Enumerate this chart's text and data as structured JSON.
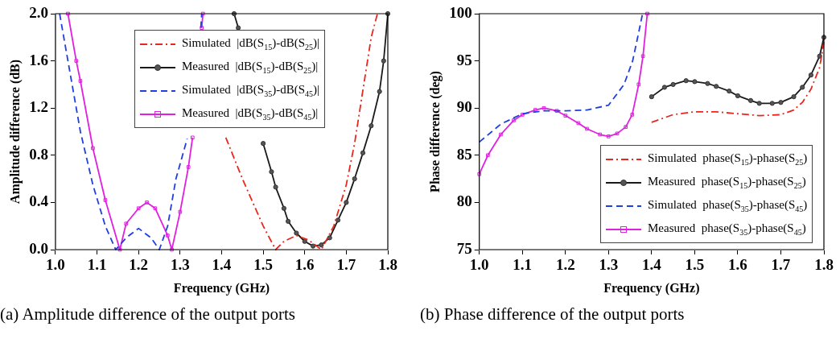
{
  "chart_data": [
    {
      "type": "line",
      "xlabel": "Frequency (GHz)",
      "ylabel": "Amplitude difference (dB)",
      "xlim": [
        1.0,
        1.8
      ],
      "ylim": [
        0,
        2.0
      ],
      "xticks": [
        {
          "value": 1.0,
          "label": "1.0"
        },
        {
          "value": 1.1,
          "label": "1.1"
        },
        {
          "value": 1.2,
          "label": "1.2"
        },
        {
          "value": 1.3,
          "label": "1.3"
        },
        {
          "value": 1.4,
          "label": "1.4"
        },
        {
          "value": 1.5,
          "label": "1.5"
        },
        {
          "value": 1.6,
          "label": "1.6"
        },
        {
          "value": 1.7,
          "label": "1.7"
        },
        {
          "value": 1.8,
          "label": "1.8"
        }
      ],
      "yticks": [
        {
          "value": 0,
          "label": "0.0"
        },
        {
          "value": 0.4,
          "label": "0.4"
        },
        {
          "value": 0.8,
          "label": "0.8"
        },
        {
          "value": 1.2,
          "label": "1.2"
        },
        {
          "value": 1.6,
          "label": "1.6"
        },
        {
          "value": 2.0,
          "label": "2.0"
        }
      ],
      "grid": false,
      "legend": "top",
      "annotations": [
        "(a) Amplitude difference of the output ports"
      ],
      "series": [
        {
          "name": "Simulated  |dB(S$_{15}$)-dB(S$_{25}$)|",
          "color": "#e8281e",
          "line_style": "dashdot",
          "marker": "none",
          "x": [
            1.41,
            1.45,
            1.48,
            1.5,
            1.53,
            1.55,
            1.58,
            1.61,
            1.64,
            1.67,
            1.7,
            1.72,
            1.74,
            1.76,
            1.775
          ],
          "values": [
            0.95,
            0.6,
            0.36,
            0.2,
            0.0,
            0.07,
            0.12,
            0.08,
            0.0,
            0.2,
            0.55,
            0.9,
            1.35,
            1.8,
            2.0
          ]
        },
        {
          "name": "Measured  |dB(S$_{15}$)-dB(S$_{25}$)|",
          "color": "#1a1a1a",
          "line_style": "solid",
          "marker": "circle",
          "x": [
            1.43,
            1.44,
            1.47,
            1.5,
            1.52,
            1.53,
            1.55,
            1.56,
            1.58,
            1.6,
            1.62,
            1.64,
            1.66,
            1.68,
            1.7,
            1.72,
            1.74,
            1.76,
            1.78,
            1.79,
            1.8
          ],
          "values": [
            2.0,
            1.88,
            null,
            0.9,
            0.66,
            0.53,
            0.35,
            0.24,
            0.14,
            0.07,
            0.03,
            0.04,
            0.1,
            0.25,
            0.4,
            0.6,
            0.82,
            1.05,
            1.34,
            1.6,
            2.0
          ]
        },
        {
          "name": "Simulated  |dB(S$_{35}$)-dB(S$_{45}$)|",
          "color": "#1f3fe0",
          "line_style": "dashed",
          "marker": "none",
          "x": [
            1.01,
            1.03,
            1.06,
            1.09,
            1.12,
            1.145,
            1.17,
            1.2,
            1.23,
            1.25,
            1.27,
            1.29,
            1.317,
            1.33,
            1.35,
            1.352
          ],
          "values": [
            2.0,
            1.6,
            1.0,
            0.55,
            0.2,
            0.0,
            0.1,
            0.18,
            0.1,
            0.0,
            0.2,
            0.6,
            0.94,
            null,
            1.88,
            2.0
          ]
        },
        {
          "name": "Measured  |dB(S$_{35}$)-dB(S$_{45}$)|",
          "color": "#e020e0",
          "line_style": "solid",
          "marker": "square",
          "x": [
            1.03,
            1.05,
            1.06,
            1.09,
            1.12,
            1.155,
            1.17,
            1.2,
            1.22,
            1.24,
            1.27,
            1.28,
            1.3,
            1.32,
            1.33,
            1.34,
            1.352,
            1.355
          ],
          "values": [
            2.0,
            1.6,
            1.43,
            0.86,
            0.42,
            0.0,
            0.22,
            0.35,
            0.4,
            0.35,
            0.12,
            0.0,
            0.32,
            0.7,
            0.95,
            null,
            1.88,
            2.0
          ]
        }
      ]
    },
    {
      "type": "line",
      "xlabel": "Frequency (GHz)",
      "ylabel": "Phase difference (deg)",
      "xlim": [
        1.0,
        1.8
      ],
      "ylim": [
        75,
        100
      ],
      "xticks": [
        {
          "value": 1.0,
          "label": "1.0"
        },
        {
          "value": 1.1,
          "label": "1.1"
        },
        {
          "value": 1.2,
          "label": "1.2"
        },
        {
          "value": 1.3,
          "label": "1.3"
        },
        {
          "value": 1.4,
          "label": "1.4"
        },
        {
          "value": 1.5,
          "label": "1.5"
        },
        {
          "value": 1.6,
          "label": "1.6"
        },
        {
          "value": 1.7,
          "label": "1.7"
        },
        {
          "value": 1.8,
          "label": "1.8"
        }
      ],
      "yticks": [
        75,
        80,
        85,
        90,
        95,
        100
      ],
      "grid": false,
      "legend": "bottom right",
      "annotations": [
        "(b) Phase difference of the output ports"
      ],
      "series": [
        {
          "name": "Simulated  phase(S$_{15}$)-phase(S$_{25}$)",
          "color": "#e8281e",
          "line_style": "dashdot",
          "marker": "none",
          "x": [
            1.4,
            1.45,
            1.5,
            1.55,
            1.6,
            1.65,
            1.7,
            1.73,
            1.75,
            1.77,
            1.79,
            1.8
          ],
          "values": [
            88.5,
            89.3,
            89.6,
            89.6,
            89.4,
            89.2,
            89.3,
            89.8,
            90.6,
            92,
            94.3,
            97
          ]
        },
        {
          "name": "Measured  phase(S$_{15}$)-phase(S$_{25}$)",
          "color": "#1a1a1a",
          "line_style": "solid",
          "marker": "circle",
          "x": [
            1.4,
            1.43,
            1.45,
            1.48,
            1.5,
            1.53,
            1.55,
            1.58,
            1.6,
            1.63,
            1.65,
            1.68,
            1.7,
            1.73,
            1.75,
            1.77,
            1.79,
            1.8
          ],
          "values": [
            91.2,
            92.2,
            92.5,
            92.9,
            92.8,
            92.6,
            92.3,
            91.8,
            91.3,
            90.8,
            90.5,
            90.5,
            90.6,
            91.2,
            92.2,
            93.5,
            95.5,
            97.5
          ]
        },
        {
          "name": "Simulated  phase(S$_{35}$)-phase(S$_{45}$)",
          "color": "#1f3fe0",
          "line_style": "dashed",
          "marker": "none",
          "x": [
            1.0,
            1.05,
            1.1,
            1.15,
            1.2,
            1.25,
            1.3,
            1.336,
            1.356,
            1.37,
            1.379
          ],
          "values": [
            86.4,
            88.3,
            89.4,
            89.7,
            89.7,
            89.8,
            90.3,
            92.5,
            95,
            98,
            100
          ]
        },
        {
          "name": "Measured  phase(S$_{35}$)-phase(S$_{45}$)",
          "color": "#e020e0",
          "line_style": "solid",
          "marker": "square",
          "x": [
            1.0,
            1.02,
            1.05,
            1.08,
            1.1,
            1.13,
            1.15,
            1.18,
            1.2,
            1.23,
            1.25,
            1.28,
            1.3,
            1.32,
            1.34,
            1.355,
            1.37,
            1.38,
            1.39
          ],
          "values": [
            83,
            85,
            87.2,
            88.7,
            89.3,
            89.8,
            90,
            89.7,
            89.2,
            88.4,
            87.8,
            87.2,
            87.0,
            87.3,
            88.0,
            89.3,
            92.5,
            95.5,
            100
          ]
        }
      ]
    }
  ]
}
